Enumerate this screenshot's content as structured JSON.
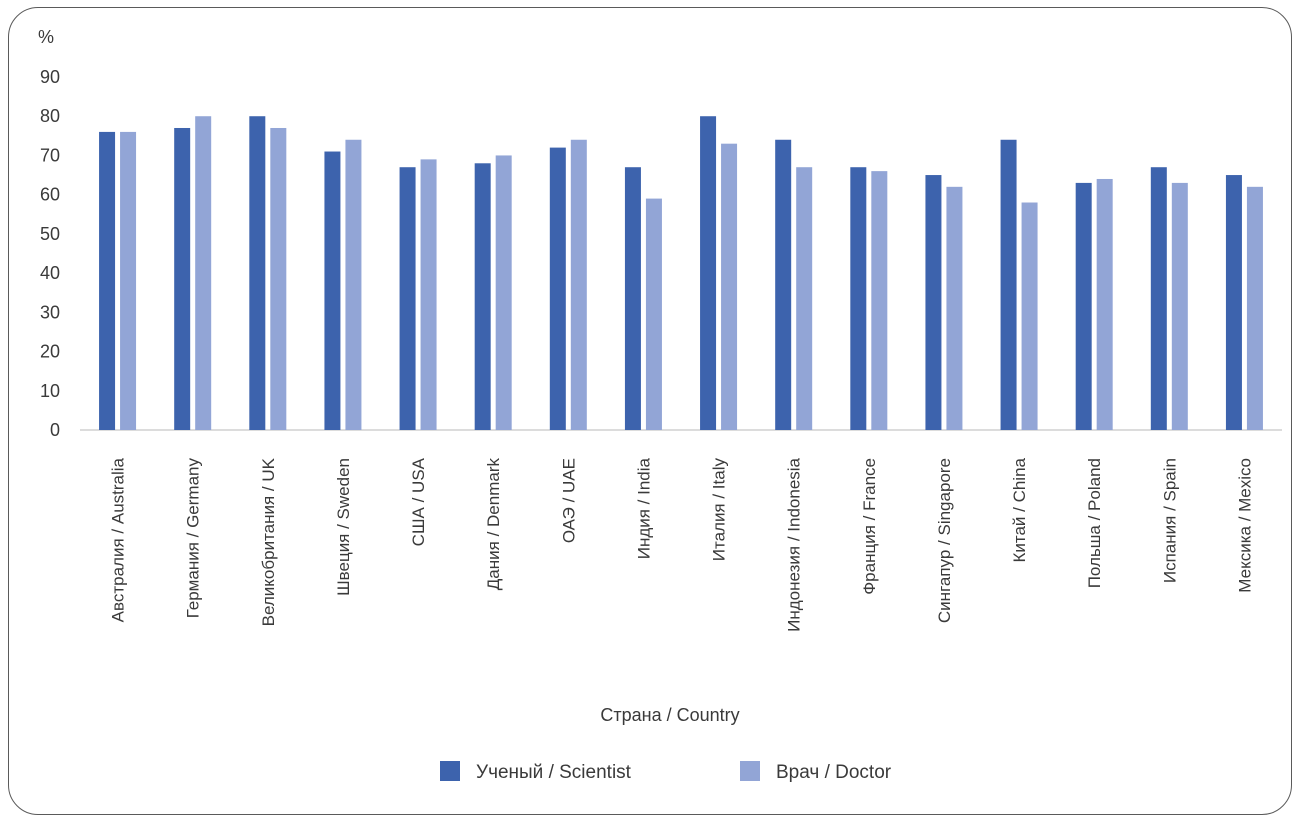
{
  "chart_data": {
    "type": "bar",
    "ylabel": "%",
    "xlabel": "Страна / Country",
    "ylim": [
      0,
      90
    ],
    "yticks": [
      0,
      10,
      20,
      30,
      40,
      50,
      60,
      70,
      80,
      90
    ],
    "grid": false,
    "legend_position": "bottom",
    "categories": [
      "Австралия / Australia",
      "Германия / Germany",
      "Великобритания / UK",
      "Швеция / Sweden",
      "США / USA",
      "Дания / Denmark",
      "ОАЭ / UAE",
      "Индия / India",
      "Италия / Italy",
      "Индонезия / Indonesia",
      "Франция / France",
      "Сингапур / Singapore",
      "Китай / China",
      "Польша / Poland",
      "Испания / Spain",
      "Мексика / Mexico"
    ],
    "series": [
      {
        "name": "Ученый / Scientist",
        "color": "#3d63ad",
        "values": [
          76,
          77,
          80,
          71,
          67,
          68,
          72,
          67,
          80,
          74,
          67,
          65,
          74,
          63,
          67,
          65
        ]
      },
      {
        "name": "Врач / Doctor",
        "color": "#92a5d6",
        "values": [
          76,
          80,
          77,
          74,
          69,
          70,
          74,
          59,
          73,
          67,
          66,
          62,
          58,
          64,
          63,
          62
        ]
      }
    ]
  }
}
